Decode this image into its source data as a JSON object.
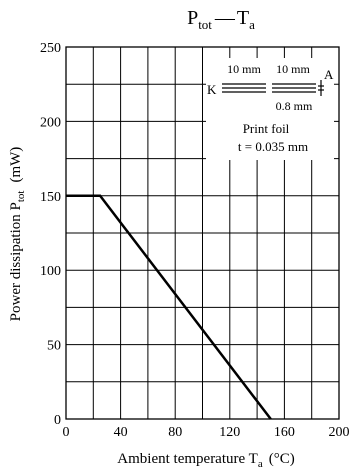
{
  "colors": {
    "background": "#ffffff",
    "line": "#000000",
    "grid": "#000000"
  },
  "chart_data": {
    "type": "line",
    "title": {
      "main": "P",
      "main_sub": "tot",
      "dash": "—",
      "second": "T",
      "second_sub": "a"
    },
    "xlabel": {
      "text": "Ambient temperature  T",
      "sub": "a",
      "unit": "(°C)"
    },
    "ylabel": {
      "text": "Power dissipation  P",
      "sub": "tot",
      "unit": "(mW)"
    },
    "xlim": [
      0,
      200
    ],
    "ylim": [
      0,
      250
    ],
    "x_ticks": [
      0,
      40,
      80,
      120,
      160,
      200
    ],
    "y_ticks": [
      0,
      50,
      100,
      150,
      200,
      250
    ],
    "x_grid": [
      0,
      20,
      40,
      60,
      80,
      100,
      120,
      140,
      160,
      180,
      200
    ],
    "y_grid": [
      0,
      25,
      50,
      75,
      100,
      125,
      150,
      175,
      200,
      225,
      250
    ],
    "grid": true,
    "series": [
      {
        "x": [
          0,
          25,
          150
        ],
        "y": [
          150,
          150,
          0
        ]
      }
    ],
    "annotation": {
      "dim_left": "10 mm",
      "dim_right": "10 mm",
      "label_k": "K",
      "label_a": "A",
      "gap": "0.8 mm",
      "print_foil": "Print foil",
      "thickness": "t = 0.035 mm"
    }
  }
}
